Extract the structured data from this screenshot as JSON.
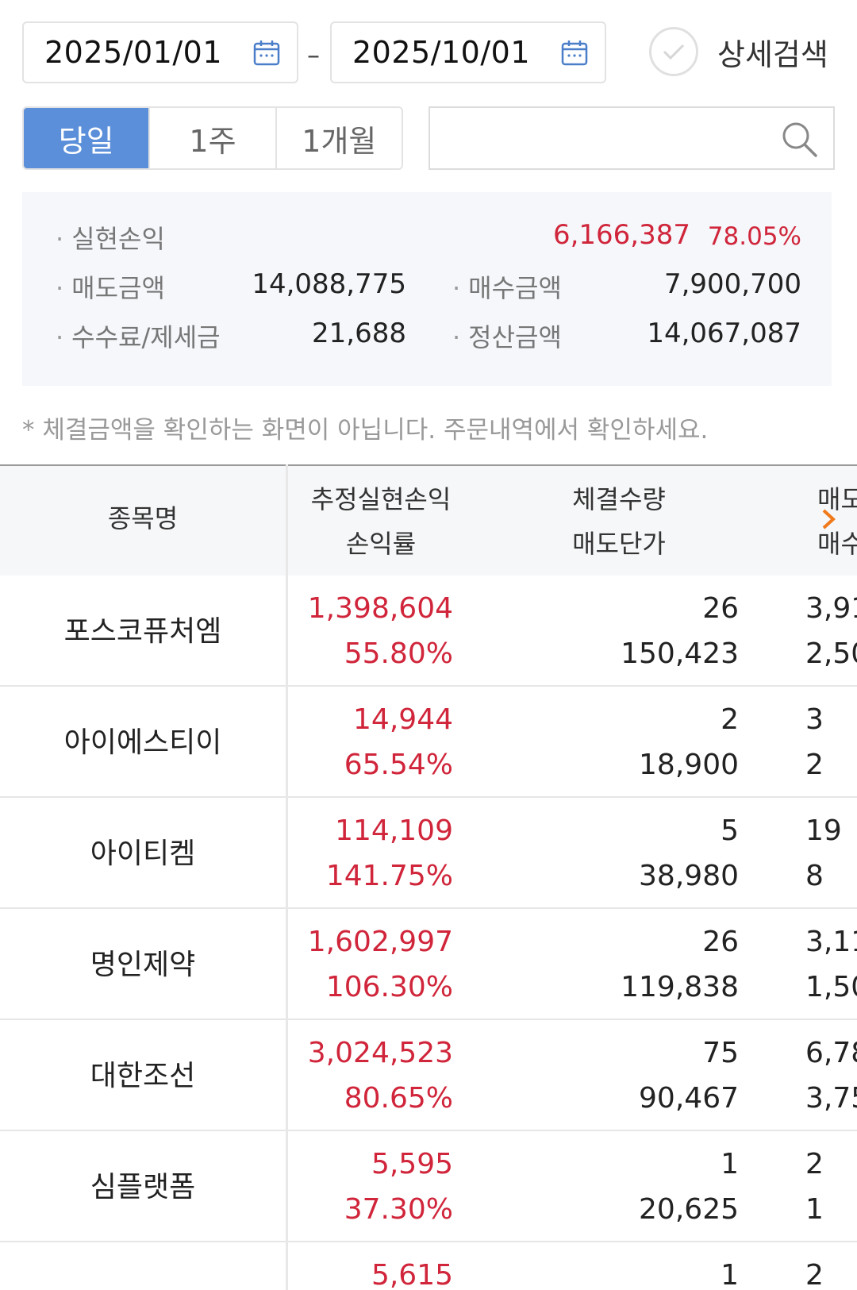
{
  "date_range": {
    "start": "2025/01/01",
    "separator": "–",
    "end": "2025/10/01"
  },
  "detail_search": {
    "label": "상세검색"
  },
  "period_tabs": [
    {
      "label": "당일",
      "active": true
    },
    {
      "label": "1주",
      "active": false
    },
    {
      "label": "1개월",
      "active": false
    }
  ],
  "search": {
    "placeholder": ""
  },
  "summary": {
    "realized_pl_label": "실현손익",
    "realized_pl_value": "6,166,387",
    "realized_pl_rate": "78.05%",
    "sell_amount_label": "매도금액",
    "sell_amount_value": "14,088,775",
    "buy_amount_label": "매수금액",
    "buy_amount_value": "7,900,700",
    "fee_tax_label": "수수료/제세금",
    "fee_tax_value": "21,688",
    "settlement_label": "정산금액",
    "settlement_value": "14,067,087"
  },
  "notice": "* 체결금액을 확인하는 화면이 아닙니다. 주문내역에서 확인하세요.",
  "table": {
    "headers": {
      "name": "종목명",
      "pl_line1": "추정실현손익",
      "pl_line2": "손익률",
      "qty_line1": "체결수량",
      "qty_line2": "매도단가",
      "more_line1": "매도",
      "more_line2": "매수"
    },
    "rows": [
      {
        "name": "포스코퓨처엠",
        "pl": "1,398,604",
        "rate": "55.80%",
        "qty": "26",
        "sell_price": "150,423",
        "more1": "3,91",
        "more2": "2,50"
      },
      {
        "name": "아이에스티이",
        "pl": "14,944",
        "rate": "65.54%",
        "qty": "2",
        "sell_price": "18,900",
        "more1": "3",
        "more2": "2"
      },
      {
        "name": "아이티켐",
        "pl": "114,109",
        "rate": "141.75%",
        "qty": "5",
        "sell_price": "38,980",
        "more1": "19",
        "more2": "8"
      },
      {
        "name": "명인제약",
        "pl": "1,602,997",
        "rate": "106.30%",
        "qty": "26",
        "sell_price": "119,838",
        "more1": "3,11",
        "more2": "1,50"
      },
      {
        "name": "대한조선",
        "pl": "3,024,523",
        "rate": "80.65%",
        "qty": "75",
        "sell_price": "90,467",
        "more1": "6,78",
        "more2": "3,75"
      },
      {
        "name": "심플랫폼",
        "pl": "5,595",
        "rate": "37.30%",
        "qty": "1",
        "sell_price": "20,625",
        "more1": "2",
        "more2": "1"
      },
      {
        "name": "",
        "pl": "5,615",
        "rate": "",
        "qty": "1",
        "sell_price": "",
        "more1": "2",
        "more2": ""
      }
    ]
  },
  "colors": {
    "accent_blue": "#5b8fd9",
    "profit_red": "#d0253a",
    "scroll_arrow_orange": "#f07a1a"
  }
}
